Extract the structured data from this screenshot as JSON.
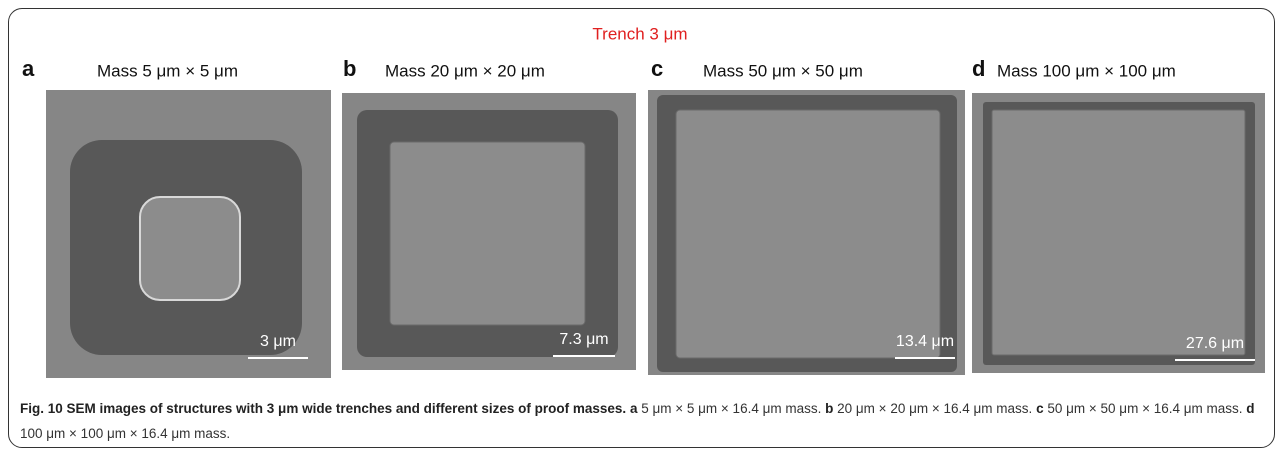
{
  "title": "Trench 3 μm",
  "panels": [
    {
      "label": "a",
      "heading": "Mass 5 μm × 5 μm",
      "scale_bar": "3 μm"
    },
    {
      "label": "b",
      "heading": "Mass 20 μm × 20 μm",
      "scale_bar": "7.3 μm"
    },
    {
      "label": "c",
      "heading": "Mass 50 μm × 50 μm",
      "scale_bar": "13.4 μm"
    },
    {
      "label": "d",
      "heading": "Mass 100 μm × 100 μm",
      "scale_bar": "27.6 μm"
    }
  ],
  "caption": {
    "title": "Fig. 10 SEM images of structures with 3 μm wide trenches and different sizes of proof masses.",
    "parts": [
      {
        "label": "a",
        "text": "5 μm × 5 μm × 16.4 μm mass."
      },
      {
        "label": "b",
        "text": "20 μm × 20 μm × 16.4 μm mass."
      },
      {
        "label": "c",
        "text": "50 μm × 50 μm × 16.4 μm mass."
      },
      {
        "label": "d",
        "text": "100 μm × 100 μm × 16.4 μm mass."
      }
    ]
  }
}
